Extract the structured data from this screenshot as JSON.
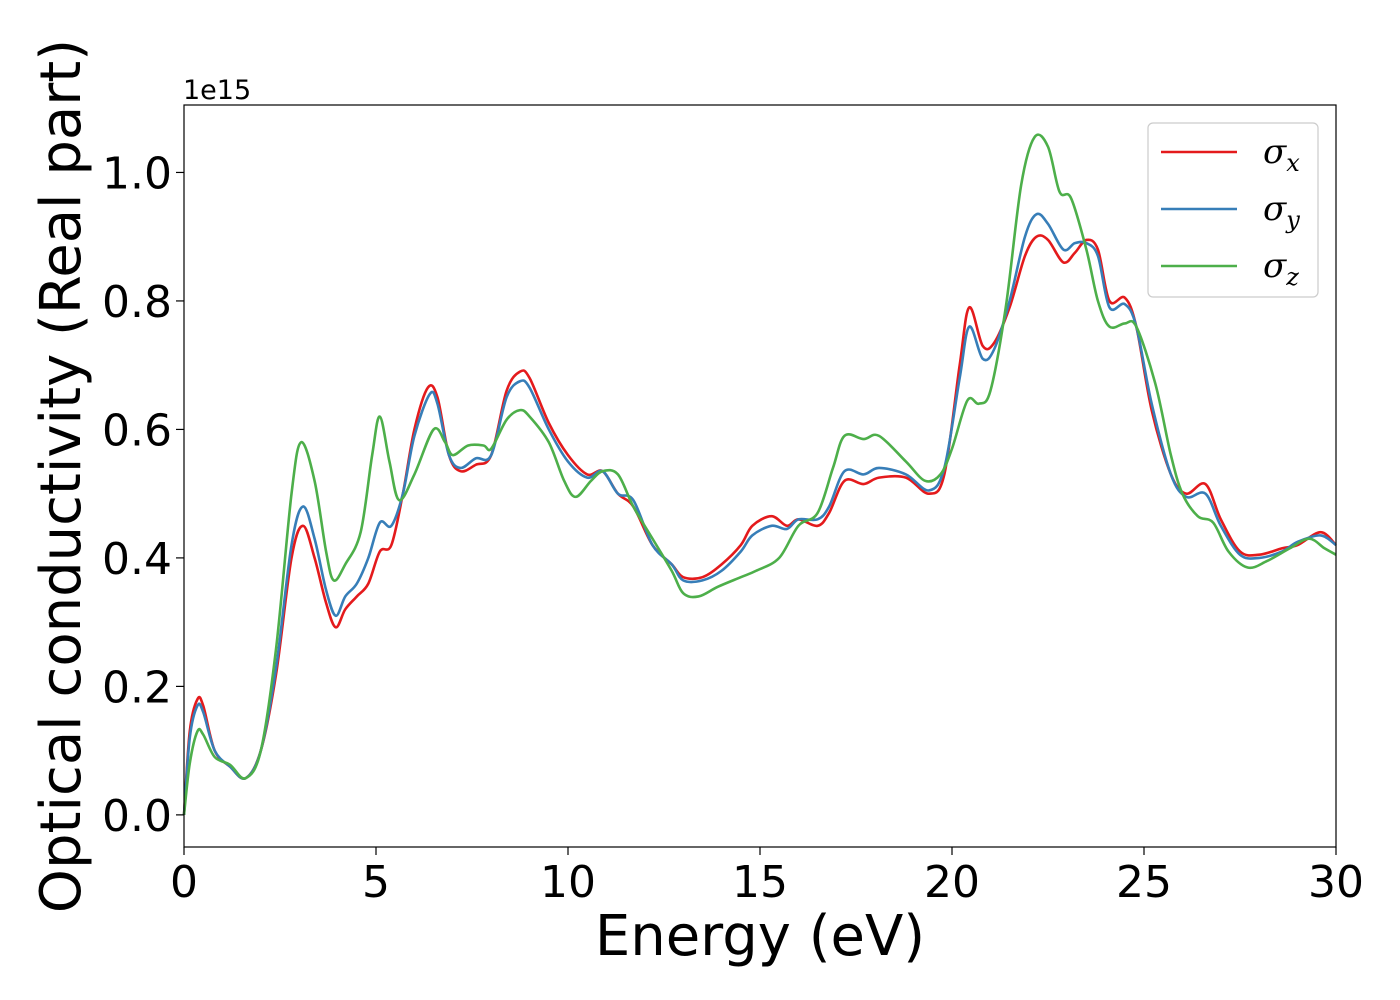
{
  "chart_data": {
    "type": "line",
    "xlabel": "Energy (eV)",
    "ylabel": "Optical conductivity (Real part)",
    "y_offset_label": "1e15",
    "xlim": [
      0,
      30
    ],
    "ylim": [
      -0.05,
      1.105
    ],
    "x_ticks": [
      0,
      5,
      10,
      15,
      20,
      25,
      30
    ],
    "x_tick_labels": [
      "0",
      "5",
      "10",
      "15",
      "20",
      "25",
      "30"
    ],
    "y_ticks": [
      0.0,
      0.2,
      0.4,
      0.6,
      0.8,
      1.0
    ],
    "y_tick_labels": [
      "0.0",
      "0.2",
      "0.4",
      "0.6",
      "0.8",
      "1.0"
    ],
    "grid": false,
    "legend_position": "top-right",
    "series": [
      {
        "name": "σx",
        "symbol": "σ",
        "subscript": "x",
        "color": "#e41a1c",
        "points": [
          [
            0,
            0.0
          ],
          [
            0.15,
            0.13
          ],
          [
            0.35,
            0.18
          ],
          [
            0.5,
            0.17
          ],
          [
            0.8,
            0.1
          ],
          [
            1.2,
            0.075
          ],
          [
            1.6,
            0.057
          ],
          [
            2.0,
            0.1
          ],
          [
            2.4,
            0.22
          ],
          [
            2.8,
            0.4
          ],
          [
            3.1,
            0.45
          ],
          [
            3.4,
            0.4
          ],
          [
            3.7,
            0.33
          ],
          [
            3.95,
            0.292
          ],
          [
            4.2,
            0.32
          ],
          [
            4.5,
            0.34
          ],
          [
            4.8,
            0.36
          ],
          [
            5.1,
            0.41
          ],
          [
            5.4,
            0.42
          ],
          [
            5.7,
            0.5
          ],
          [
            6.0,
            0.6
          ],
          [
            6.35,
            0.665
          ],
          [
            6.6,
            0.65
          ],
          [
            6.9,
            0.56
          ],
          [
            7.2,
            0.535
          ],
          [
            7.6,
            0.545
          ],
          [
            8.0,
            0.56
          ],
          [
            8.4,
            0.66
          ],
          [
            8.75,
            0.69
          ],
          [
            9.0,
            0.68
          ],
          [
            9.5,
            0.61
          ],
          [
            10.0,
            0.56
          ],
          [
            10.5,
            0.53
          ],
          [
            10.9,
            0.535
          ],
          [
            11.3,
            0.5
          ],
          [
            11.7,
            0.48
          ],
          [
            12.2,
            0.42
          ],
          [
            12.7,
            0.39
          ],
          [
            13.0,
            0.37
          ],
          [
            13.5,
            0.37
          ],
          [
            14.0,
            0.39
          ],
          [
            14.5,
            0.42
          ],
          [
            14.8,
            0.45
          ],
          [
            15.3,
            0.465
          ],
          [
            15.7,
            0.45
          ],
          [
            16.0,
            0.46
          ],
          [
            16.5,
            0.45
          ],
          [
            16.8,
            0.47
          ],
          [
            17.2,
            0.52
          ],
          [
            17.7,
            0.515
          ],
          [
            18.1,
            0.525
          ],
          [
            18.8,
            0.525
          ],
          [
            19.4,
            0.5
          ],
          [
            19.8,
            0.53
          ],
          [
            20.2,
            0.7
          ],
          [
            20.45,
            0.79
          ],
          [
            20.8,
            0.73
          ],
          [
            21.1,
            0.735
          ],
          [
            21.5,
            0.79
          ],
          [
            21.9,
            0.87
          ],
          [
            22.2,
            0.9
          ],
          [
            22.5,
            0.895
          ],
          [
            22.9,
            0.86
          ],
          [
            23.2,
            0.875
          ],
          [
            23.5,
            0.895
          ],
          [
            23.8,
            0.88
          ],
          [
            24.1,
            0.8
          ],
          [
            24.5,
            0.805
          ],
          [
            24.8,
            0.76
          ],
          [
            25.2,
            0.63
          ],
          [
            25.7,
            0.53
          ],
          [
            26.1,
            0.5
          ],
          [
            26.6,
            0.515
          ],
          [
            27.0,
            0.46
          ],
          [
            27.5,
            0.41
          ],
          [
            28.0,
            0.405
          ],
          [
            28.6,
            0.415
          ],
          [
            29.0,
            0.42
          ],
          [
            29.6,
            0.44
          ],
          [
            30.0,
            0.42
          ]
        ]
      },
      {
        "name": "σy",
        "symbol": "σ",
        "subscript": "y",
        "color": "#377eb8",
        "points": [
          [
            0,
            0.0
          ],
          [
            0.15,
            0.12
          ],
          [
            0.35,
            0.17
          ],
          [
            0.5,
            0.16
          ],
          [
            0.8,
            0.1
          ],
          [
            1.2,
            0.075
          ],
          [
            1.6,
            0.057
          ],
          [
            2.0,
            0.1
          ],
          [
            2.4,
            0.23
          ],
          [
            2.8,
            0.42
          ],
          [
            3.1,
            0.48
          ],
          [
            3.4,
            0.43
          ],
          [
            3.7,
            0.35
          ],
          [
            3.95,
            0.31
          ],
          [
            4.2,
            0.34
          ],
          [
            4.5,
            0.36
          ],
          [
            4.8,
            0.4
          ],
          [
            5.1,
            0.455
          ],
          [
            5.4,
            0.45
          ],
          [
            5.7,
            0.5
          ],
          [
            6.0,
            0.59
          ],
          [
            6.4,
            0.655
          ],
          [
            6.6,
            0.64
          ],
          [
            6.9,
            0.56
          ],
          [
            7.2,
            0.54
          ],
          [
            7.6,
            0.555
          ],
          [
            8.0,
            0.56
          ],
          [
            8.4,
            0.65
          ],
          [
            8.75,
            0.675
          ],
          [
            9.0,
            0.665
          ],
          [
            9.5,
            0.6
          ],
          [
            10.0,
            0.55
          ],
          [
            10.5,
            0.525
          ],
          [
            10.9,
            0.535
          ],
          [
            11.3,
            0.5
          ],
          [
            11.7,
            0.49
          ],
          [
            12.2,
            0.42
          ],
          [
            12.7,
            0.39
          ],
          [
            13.0,
            0.365
          ],
          [
            13.5,
            0.365
          ],
          [
            14.0,
            0.38
          ],
          [
            14.5,
            0.41
          ],
          [
            14.8,
            0.435
          ],
          [
            15.3,
            0.45
          ],
          [
            15.7,
            0.445
          ],
          [
            16.0,
            0.46
          ],
          [
            16.5,
            0.46
          ],
          [
            16.8,
            0.48
          ],
          [
            17.2,
            0.535
          ],
          [
            17.7,
            0.53
          ],
          [
            18.1,
            0.54
          ],
          [
            18.8,
            0.53
          ],
          [
            19.4,
            0.505
          ],
          [
            19.8,
            0.54
          ],
          [
            20.2,
            0.68
          ],
          [
            20.45,
            0.76
          ],
          [
            20.8,
            0.71
          ],
          [
            21.1,
            0.725
          ],
          [
            21.5,
            0.8
          ],
          [
            21.9,
            0.9
          ],
          [
            22.2,
            0.935
          ],
          [
            22.5,
            0.92
          ],
          [
            22.9,
            0.88
          ],
          [
            23.2,
            0.89
          ],
          [
            23.5,
            0.89
          ],
          [
            23.8,
            0.87
          ],
          [
            24.1,
            0.79
          ],
          [
            24.5,
            0.795
          ],
          [
            24.8,
            0.76
          ],
          [
            25.2,
            0.64
          ],
          [
            25.7,
            0.53
          ],
          [
            26.1,
            0.495
          ],
          [
            26.6,
            0.5
          ],
          [
            27.0,
            0.45
          ],
          [
            27.5,
            0.405
          ],
          [
            28.0,
            0.4
          ],
          [
            28.6,
            0.41
          ],
          [
            29.0,
            0.425
          ],
          [
            29.6,
            0.435
          ],
          [
            30.0,
            0.42
          ]
        ]
      },
      {
        "name": "σz",
        "symbol": "σ",
        "subscript": "z",
        "color": "#4daf4a",
        "points": [
          [
            0,
            0.0
          ],
          [
            0.15,
            0.08
          ],
          [
            0.35,
            0.13
          ],
          [
            0.5,
            0.125
          ],
          [
            0.8,
            0.09
          ],
          [
            1.2,
            0.078
          ],
          [
            1.6,
            0.057
          ],
          [
            2.0,
            0.1
          ],
          [
            2.4,
            0.26
          ],
          [
            2.8,
            0.5
          ],
          [
            3.05,
            0.58
          ],
          [
            3.4,
            0.52
          ],
          [
            3.7,
            0.41
          ],
          [
            3.9,
            0.365
          ],
          [
            4.2,
            0.39
          ],
          [
            4.6,
            0.44
          ],
          [
            4.9,
            0.56
          ],
          [
            5.1,
            0.62
          ],
          [
            5.35,
            0.55
          ],
          [
            5.6,
            0.49
          ],
          [
            6.0,
            0.53
          ],
          [
            6.5,
            0.6
          ],
          [
            6.8,
            0.58
          ],
          [
            7.0,
            0.56
          ],
          [
            7.4,
            0.575
          ],
          [
            7.8,
            0.575
          ],
          [
            8.0,
            0.57
          ],
          [
            8.4,
            0.615
          ],
          [
            8.75,
            0.63
          ],
          [
            9.0,
            0.62
          ],
          [
            9.5,
            0.58
          ],
          [
            9.9,
            0.52
          ],
          [
            10.2,
            0.495
          ],
          [
            10.6,
            0.52
          ],
          [
            10.9,
            0.535
          ],
          [
            11.3,
            0.53
          ],
          [
            11.7,
            0.48
          ],
          [
            12.2,
            0.43
          ],
          [
            12.7,
            0.38
          ],
          [
            13.0,
            0.345
          ],
          [
            13.4,
            0.34
          ],
          [
            13.9,
            0.355
          ],
          [
            14.5,
            0.37
          ],
          [
            14.9,
            0.38
          ],
          [
            15.5,
            0.4
          ],
          [
            16.0,
            0.45
          ],
          [
            16.5,
            0.47
          ],
          [
            16.9,
            0.54
          ],
          [
            17.2,
            0.59
          ],
          [
            17.7,
            0.585
          ],
          [
            18.1,
            0.59
          ],
          [
            18.8,
            0.55
          ],
          [
            19.3,
            0.52
          ],
          [
            19.7,
            0.53
          ],
          [
            20.0,
            0.57
          ],
          [
            20.4,
            0.645
          ],
          [
            20.7,
            0.64
          ],
          [
            21.0,
            0.66
          ],
          [
            21.4,
            0.79
          ],
          [
            21.8,
            0.98
          ],
          [
            22.15,
            1.055
          ],
          [
            22.5,
            1.04
          ],
          [
            22.8,
            0.97
          ],
          [
            23.1,
            0.96
          ],
          [
            23.5,
            0.88
          ],
          [
            23.8,
            0.8
          ],
          [
            24.1,
            0.76
          ],
          [
            24.5,
            0.765
          ],
          [
            24.8,
            0.76
          ],
          [
            25.3,
            0.67
          ],
          [
            25.7,
            0.56
          ],
          [
            26.0,
            0.5
          ],
          [
            26.4,
            0.465
          ],
          [
            26.8,
            0.455
          ],
          [
            27.2,
            0.41
          ],
          [
            27.7,
            0.385
          ],
          [
            28.2,
            0.395
          ],
          [
            28.8,
            0.415
          ],
          [
            29.3,
            0.43
          ],
          [
            29.7,
            0.415
          ],
          [
            30.0,
            0.405
          ]
        ]
      }
    ]
  }
}
